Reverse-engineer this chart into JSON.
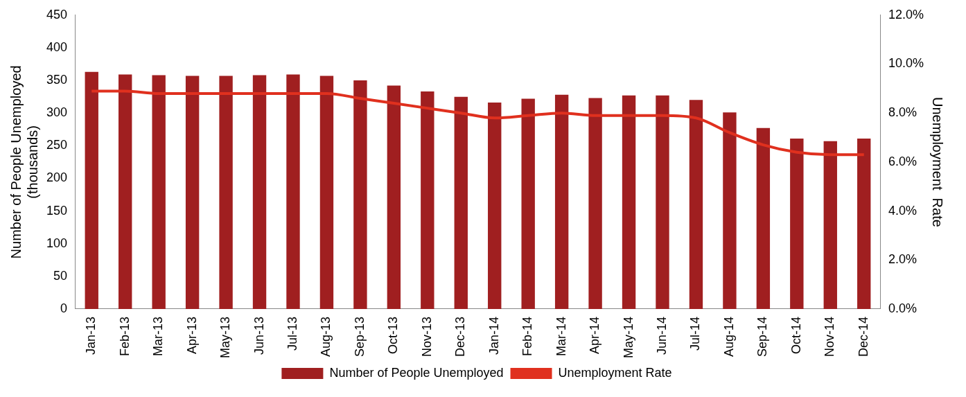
{
  "chart_data": {
    "type": "bar",
    "categories": [
      "Jan-13",
      "Feb-13",
      "Mar-13",
      "Apr-13",
      "May-13",
      "Jun-13",
      "Jul-13",
      "Aug-13",
      "Sep-13",
      "Oct-13",
      "Nov-13",
      "Dec-13",
      "Jan-14",
      "Feb-14",
      "Mar-14",
      "Apr-14",
      "May-14",
      "Jun-14",
      "Jul-14",
      "Aug-14",
      "Sep-14",
      "Oct-14",
      "Nov-14",
      "Dec-14"
    ],
    "ylabel": "Number  of People Unemployed  (thousands)",
    "y2label": "Unemployment  Rate",
    "ylim": [
      0,
      450
    ],
    "yticks": [
      0,
      50,
      100,
      150,
      200,
      250,
      300,
      350,
      400,
      450
    ],
    "y2lim": [
      0,
      12
    ],
    "y2ticks": [
      {
        "value": 0,
        "label": "0.0%"
      },
      {
        "value": 2,
        "label": "2.0%"
      },
      {
        "value": 4,
        "label": "4.0%"
      },
      {
        "value": 6,
        "label": "6.0%"
      },
      {
        "value": 8,
        "label": "8.0%"
      },
      {
        "value": 10,
        "label": "10.0%"
      },
      {
        "value": 12,
        "label": "12.0%"
      }
    ],
    "grid": false,
    "legend": "bottom",
    "series": [
      {
        "name": "Number of People Unemployed",
        "color": "#a01f20",
        "values": [
          363,
          359,
          358,
          357,
          357,
          358,
          359,
          357,
          350,
          342,
          333,
          325,
          316,
          322,
          328,
          323,
          327,
          327,
          320,
          301,
          277,
          261,
          257,
          261
        ]
      },
      {
        "name": "Unemployment Rate",
        "type": "line",
        "axis": "y2",
        "color": "#e0301e",
        "values": [
          8.9,
          8.9,
          8.8,
          8.8,
          8.8,
          8.8,
          8.8,
          8.8,
          8.6,
          8.4,
          8.2,
          8.0,
          7.8,
          7.9,
          8.0,
          7.9,
          7.9,
          7.9,
          7.8,
          7.2,
          6.7,
          6.4,
          6.3,
          6.3
        ]
      }
    ]
  }
}
